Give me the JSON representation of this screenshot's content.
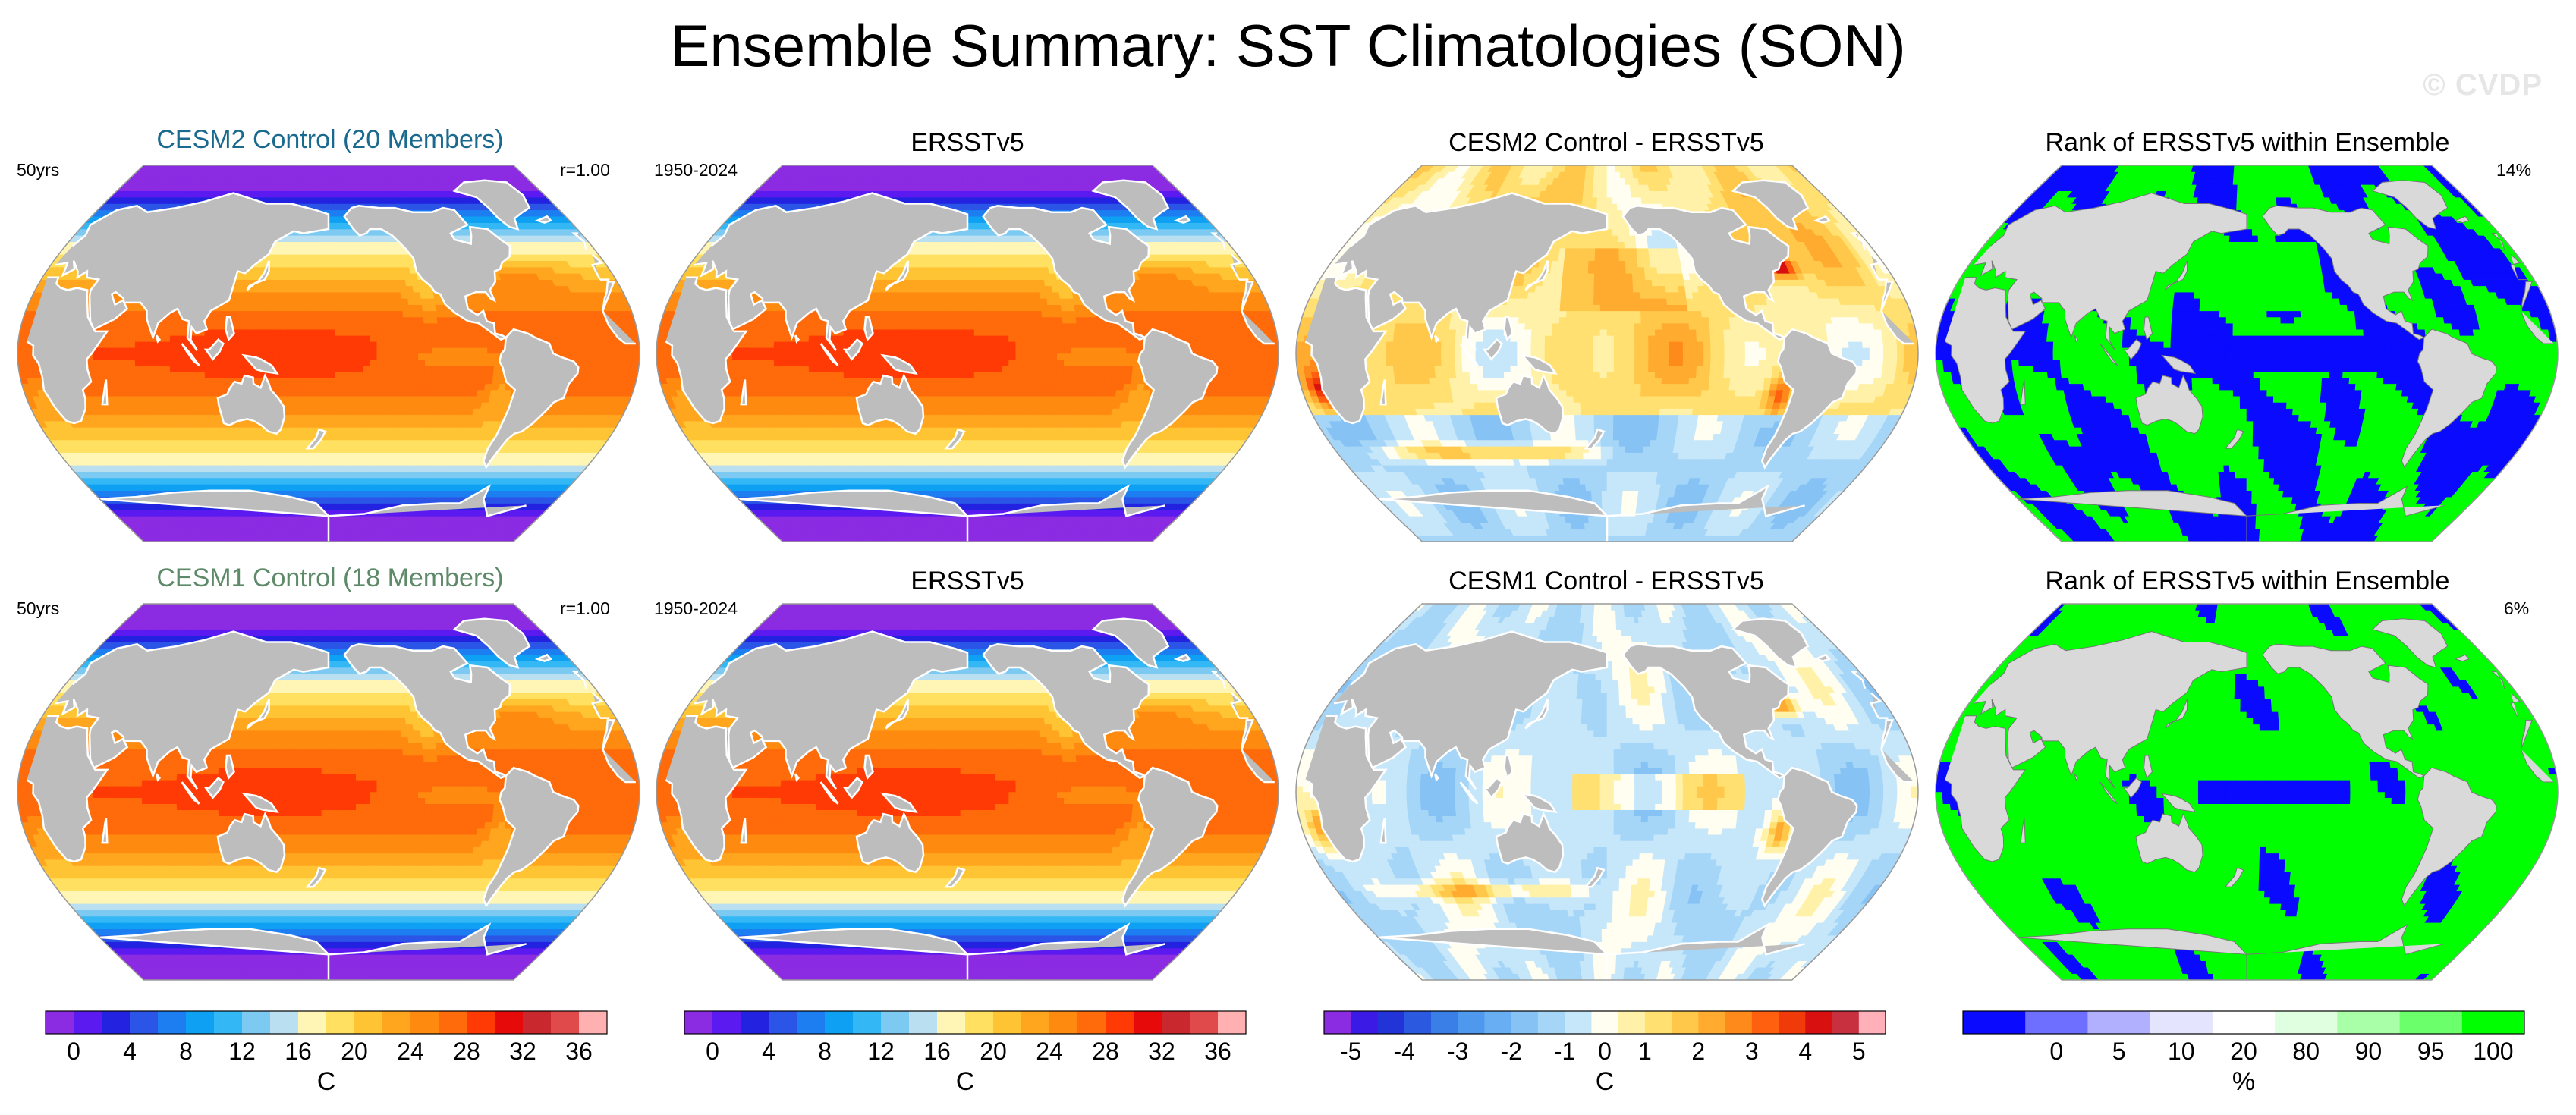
{
  "title": "Ensemble Summary: SST Climatologies (SON)",
  "watermark": "© CVDP",
  "rows": [
    {
      "panels": [
        {
          "title": "CESM2 Control (20 Members)",
          "title_color": "#1a6a8f",
          "left_label": "50yrs",
          "right_label": "r=1.00"
        },
        {
          "title": "ERSSTv5",
          "title_color": "#000000",
          "left_label": "1950-2024",
          "right_label": ""
        },
        {
          "title": "CESM2 Control - ERSSTv5",
          "title_color": "#000000",
          "left_label": "",
          "right_label": ""
        },
        {
          "title": "Rank of ERSSTv5 within Ensemble",
          "title_color": "#000000",
          "left_label": "",
          "right_label": "14%"
        }
      ]
    },
    {
      "panels": [
        {
          "title": "CESM1 Control (18 Members)",
          "title_color": "#5e8a6a",
          "left_label": "50yrs",
          "right_label": "r=1.00"
        },
        {
          "title": "ERSSTv5",
          "title_color": "#000000",
          "left_label": "1950-2024",
          "right_label": ""
        },
        {
          "title": "CESM1 Control - ERSSTv5",
          "title_color": "#000000",
          "left_label": "",
          "right_label": ""
        },
        {
          "title": "Rank of ERSSTv5 within Ensemble",
          "title_color": "#000000",
          "left_label": "",
          "right_label": "6%"
        }
      ]
    }
  ],
  "colorbars": [
    {
      "label": "C",
      "tick_labels": [
        "0",
        "4",
        "8",
        "12",
        "16",
        "20",
        "24",
        "28",
        "32",
        "36"
      ]
    },
    {
      "label": "C",
      "tick_labels": [
        "0",
        "4",
        "8",
        "12",
        "16",
        "20",
        "24",
        "28",
        "32",
        "36"
      ]
    },
    {
      "label": "C",
      "tick_labels": [
        "-5",
        "-4",
        "-3",
        "-2",
        "-1",
        "0",
        "1",
        "2",
        "3",
        "4",
        "5"
      ]
    },
    {
      "label": "%",
      "tick_labels": [
        "0",
        "5",
        "10",
        "20",
        "80",
        "90",
        "95",
        "100"
      ]
    }
  ],
  "chart_data": {
    "type": "heatmap",
    "title": "Ensemble Summary: SST Climatologies (SON)",
    "projection": "robinson-like global map",
    "season": "SON",
    "maps": [
      {
        "panel": "CESM2 Control (20 Members)",
        "field": "SST climatology",
        "units": "C",
        "range": [
          0,
          36
        ]
      },
      {
        "panel": "ERSSTv5",
        "field": "SST climatology",
        "units": "C",
        "range": [
          0,
          36
        ],
        "period": "1950-2024"
      },
      {
        "panel": "CESM2 Control - ERSSTv5",
        "field": "SST difference",
        "units": "C",
        "range": [
          -5,
          5
        ]
      },
      {
        "panel": "Rank of ERSSTv5 within Ensemble",
        "field": "rank",
        "units": "%",
        "range": [
          0,
          100
        ],
        "summary": "14%"
      },
      {
        "panel": "CESM1 Control (18 Members)",
        "field": "SST climatology",
        "units": "C",
        "range": [
          0,
          36
        ]
      },
      {
        "panel": "ERSSTv5",
        "field": "SST climatology",
        "units": "C",
        "range": [
          0,
          36
        ],
        "period": "1950-2024"
      },
      {
        "panel": "CESM1 Control - ERSSTv5",
        "field": "SST difference",
        "units": "C",
        "range": [
          -5,
          5
        ]
      },
      {
        "panel": "Rank of ERSSTv5 within Ensemble",
        "field": "rank",
        "units": "%",
        "range": [
          0,
          100
        ],
        "summary": "6%"
      }
    ],
    "colorbar_sst": {
      "levels": [
        0,
        2,
        4,
        6,
        8,
        10,
        12,
        14,
        16,
        18,
        20,
        22,
        24,
        26,
        28,
        30,
        32,
        34,
        36
      ],
      "colors": [
        "#8b2be2",
        "#5a1af0",
        "#2222e0",
        "#2b55e6",
        "#1c7ef0",
        "#0ea0f2",
        "#33b8f5",
        "#7cc9f2",
        "#b9dff0",
        "#fff5b4",
        "#ffe060",
        "#ffc433",
        "#ffa61e",
        "#ff8a10",
        "#ff6a0a",
        "#ff3a05",
        "#e60a0a",
        "#c8282e",
        "#e04a4a",
        "#ffb0b0"
      ]
    },
    "colorbar_diff": {
      "levels": [
        -5,
        -4.5,
        -4,
        -3.5,
        -3,
        -2.5,
        -2,
        -1.5,
        -1,
        -0.5,
        0,
        0.5,
        1,
        1.5,
        2,
        2.5,
        3,
        3.5,
        4,
        4.5,
        5
      ],
      "colors": [
        "#8b2be2",
        "#3c1ae6",
        "#2233d8",
        "#2b5ae0",
        "#3a7fe8",
        "#4e98ee",
        "#68aef2",
        "#86c2f4",
        "#a6d6f7",
        "#c6e7fa",
        "#fffef0",
        "#fff2a8",
        "#ffe070",
        "#ffc84a",
        "#ffab30",
        "#ff8a1c",
        "#ff6010",
        "#f03a0a",
        "#d81010",
        "#c83040",
        "#ffb0b8"
      ]
    },
    "colorbar_rank": {
      "levels": [
        0,
        5,
        10,
        20,
        80,
        90,
        95,
        100
      ],
      "colors": [
        "#0a0aff",
        "#6e6eff",
        "#b0b0ff",
        "#e4e4ff",
        "#ffffff",
        "#e0ffe0",
        "#a8ffa8",
        "#6cff6c",
        "#00ff00"
      ]
    }
  }
}
